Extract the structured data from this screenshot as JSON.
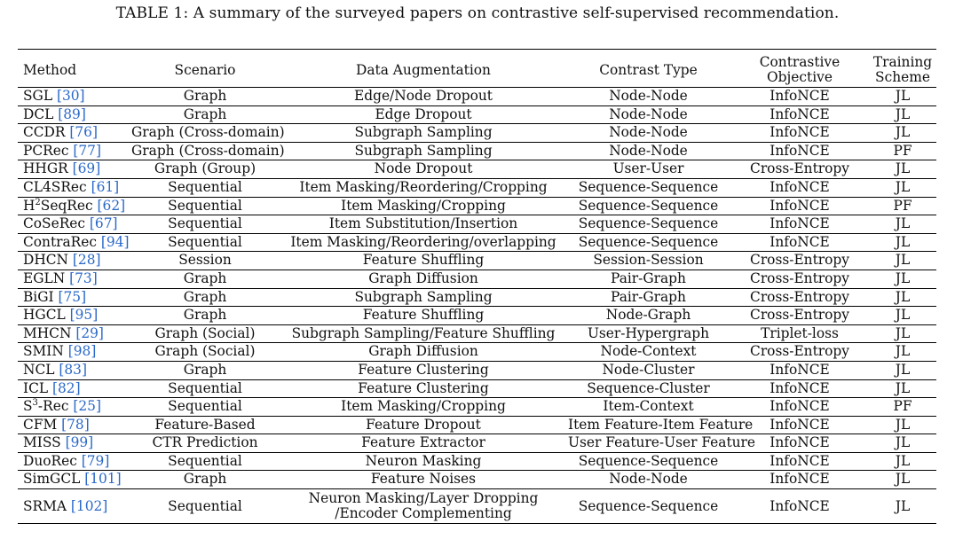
{
  "caption": "TABLE 1: A summary of the surveyed papers on contrastive self-supervised recommendation.",
  "colors": {
    "ref_link": "#2a68c8",
    "text": "#111111",
    "rule": "#000000"
  },
  "headers": {
    "method": "Method",
    "scenario": "Scenario",
    "augmentation": "Data Augmentation",
    "contrast": "Contrast Type",
    "objective_line1": "Contrastive",
    "objective_line2": "Objective",
    "training_line1": "Training",
    "training_line2": "Scheme"
  },
  "rows": [
    {
      "name": "SGL",
      "sup": "",
      "name_rest": "",
      "ref": "[30]",
      "scenario": "Graph",
      "augmentation": "Edge/Node Dropout",
      "augmentation2": "",
      "contrast": "Node-Node",
      "objective": "InfoNCE",
      "training": "JL"
    },
    {
      "name": "DCL",
      "sup": "",
      "name_rest": "",
      "ref": "[89]",
      "scenario": "Graph",
      "augmentation": "Edge Dropout",
      "augmentation2": "",
      "contrast": "Node-Node",
      "objective": "InfoNCE",
      "training": "JL"
    },
    {
      "name": "CCDR",
      "sup": "",
      "name_rest": "",
      "ref": "[76]",
      "scenario": "Graph (Cross-domain)",
      "augmentation": "Subgraph Sampling",
      "augmentation2": "",
      "contrast": "Node-Node",
      "objective": "InfoNCE",
      "training": "JL"
    },
    {
      "name": "PCRec",
      "sup": "",
      "name_rest": "",
      "ref": "[77]",
      "scenario": "Graph (Cross-domain)",
      "augmentation": "Subgraph Sampling",
      "augmentation2": "",
      "contrast": "Node-Node",
      "objective": "InfoNCE",
      "training": "PF"
    },
    {
      "name": "HHGR",
      "sup": "",
      "name_rest": "",
      "ref": "[69]",
      "scenario": "Graph (Group)",
      "augmentation": "Node Dropout",
      "augmentation2": "",
      "contrast": "User-User",
      "objective": "Cross-Entropy",
      "training": "JL"
    },
    {
      "name": "CL4SRec",
      "sup": "",
      "name_rest": "",
      "ref": "[61]",
      "scenario": "Sequential",
      "augmentation": "Item Masking/Reordering/Cropping",
      "augmentation2": "",
      "contrast": "Sequence-Sequence",
      "objective": "InfoNCE",
      "training": "JL"
    },
    {
      "name": "H",
      "sup": "2",
      "name_rest": "SeqRec",
      "ref": "[62]",
      "scenario": "Sequential",
      "augmentation": "Item Masking/Cropping",
      "augmentation2": "",
      "contrast": "Sequence-Sequence",
      "objective": "InfoNCE",
      "training": "PF"
    },
    {
      "name": "CoSeRec",
      "sup": "",
      "name_rest": "",
      "ref": "[67]",
      "scenario": "Sequential",
      "augmentation": "Item Substitution/Insertion",
      "augmentation2": "",
      "contrast": "Sequence-Sequence",
      "objective": "InfoNCE",
      "training": "JL"
    },
    {
      "name": "ContraRec",
      "sup": "",
      "name_rest": "",
      "ref": "[94]",
      "scenario": "Sequential",
      "augmentation": "Item Masking/Reordering/overlapping",
      "augmentation2": "",
      "contrast": "Sequence-Sequence",
      "objective": "InfoNCE",
      "training": "JL"
    },
    {
      "name": "DHCN",
      "sup": "",
      "name_rest": "",
      "ref": "[28]",
      "scenario": "Session",
      "augmentation": "Feature Shuffling",
      "augmentation2": "",
      "contrast": "Session-Session",
      "objective": "Cross-Entropy",
      "training": "JL"
    },
    {
      "name": "EGLN",
      "sup": "",
      "name_rest": "",
      "ref": "[73]",
      "scenario": "Graph",
      "augmentation": "Graph Diffusion",
      "augmentation2": "",
      "contrast": "Pair-Graph",
      "objective": "Cross-Entropy",
      "training": "JL"
    },
    {
      "name": "BiGI",
      "sup": "",
      "name_rest": "",
      "ref": "[75]",
      "scenario": "Graph",
      "augmentation": "Subgraph Sampling",
      "augmentation2": "",
      "contrast": "Pair-Graph",
      "objective": "Cross-Entropy",
      "training": "JL"
    },
    {
      "name": "HGCL",
      "sup": "",
      "name_rest": "",
      "ref": "[95]",
      "scenario": "Graph",
      "augmentation": "Feature Shuffling",
      "augmentation2": "",
      "contrast": "Node-Graph",
      "objective": "Cross-Entropy",
      "training": "JL"
    },
    {
      "name": "MHCN",
      "sup": "",
      "name_rest": "",
      "ref": "[29]",
      "scenario": "Graph (Social)",
      "augmentation": "Subgraph Sampling/Feature Shuffling",
      "augmentation2": "",
      "contrast": "User-Hypergraph",
      "objective": "Triplet-loss",
      "training": "JL"
    },
    {
      "name": "SMIN",
      "sup": "",
      "name_rest": "",
      "ref": "[98]",
      "scenario": "Graph (Social)",
      "augmentation": "Graph Diffusion",
      "augmentation2": "",
      "contrast": "Node-Context",
      "objective": "Cross-Entropy",
      "training": "JL"
    },
    {
      "name": "NCL",
      "sup": "",
      "name_rest": "",
      "ref": "[83]",
      "scenario": "Graph",
      "augmentation": "Feature Clustering",
      "augmentation2": "",
      "contrast": "Node-Cluster",
      "objective": "InfoNCE",
      "training": "JL"
    },
    {
      "name": "ICL",
      "sup": "",
      "name_rest": "",
      "ref": "[82]",
      "scenario": "Sequential",
      "augmentation": "Feature Clustering",
      "augmentation2": "",
      "contrast": "Sequence-Cluster",
      "objective": "InfoNCE",
      "training": "JL"
    },
    {
      "name": "S",
      "sup": "3",
      "name_rest": "-Rec",
      "ref": "[25]",
      "scenario": "Sequential",
      "augmentation": "Item Masking/Cropping",
      "augmentation2": "",
      "contrast": "Item-Context",
      "objective": "InfoNCE",
      "training": "PF"
    },
    {
      "name": "CFM",
      "sup": "",
      "name_rest": "",
      "ref": "[78]",
      "scenario": "Feature-Based",
      "augmentation": "Feature Dropout",
      "augmentation2": "",
      "contrast": "Item Feature-Item Feature",
      "objective": "InfoNCE",
      "training": "JL"
    },
    {
      "name": "MISS",
      "sup": "",
      "name_rest": "",
      "ref": "[99]",
      "scenario": "CTR Prediction",
      "augmentation": "Feature Extractor",
      "augmentation2": "",
      "contrast": "User Feature-User Feature",
      "objective": "InfoNCE",
      "training": "JL"
    },
    {
      "name": "DuoRec",
      "sup": "",
      "name_rest": "",
      "ref": "[79]",
      "scenario": "Sequential",
      "augmentation": "Neuron Masking",
      "augmentation2": "",
      "contrast": "Sequence-Sequence",
      "objective": "InfoNCE",
      "training": "JL"
    },
    {
      "name": "SimGCL",
      "sup": "",
      "name_rest": "",
      "ref": "[101]",
      "scenario": "Graph",
      "augmentation": "Feature Noises",
      "augmentation2": "",
      "contrast": "Node-Node",
      "objective": "InfoNCE",
      "training": "JL"
    },
    {
      "name": "SRMA",
      "sup": "",
      "name_rest": "",
      "ref": "[102]",
      "scenario": "Sequential",
      "augmentation": "Neuron Masking/Layer Dropping",
      "augmentation2": "/Encoder Complementing",
      "contrast": "Sequence-Sequence",
      "objective": "InfoNCE",
      "training": "JL"
    }
  ]
}
